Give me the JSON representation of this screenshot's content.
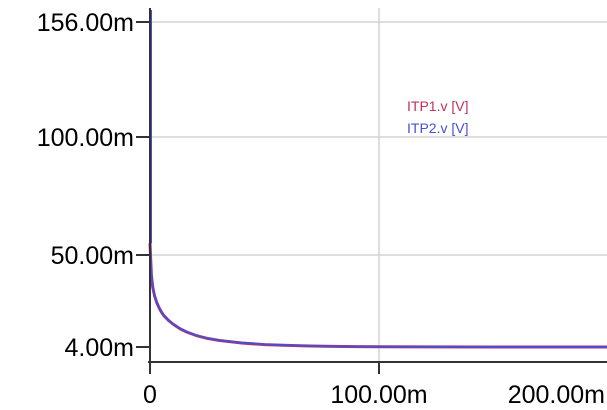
{
  "chart_data": {
    "type": "line",
    "xlabel": "",
    "ylabel": "",
    "xlim": [
      0,
      200
    ],
    "ylim": [
      4,
      156
    ],
    "x_unit": "m",
    "y_unit": "m",
    "grid": true,
    "legend_placement": "top-right",
    "x_ticks": [
      {
        "value": 0,
        "label": "0"
      },
      {
        "value": 100,
        "label": "100.00m"
      },
      {
        "value": 200,
        "label": "200.00m"
      }
    ],
    "y_ticks": [
      {
        "value": 4,
        "label": "4.00m"
      },
      {
        "value": 50,
        "label": "50.00m"
      },
      {
        "value": 100,
        "label": "100.00m"
      },
      {
        "value": 156,
        "label": "156.00m"
      }
    ],
    "series": [
      {
        "name": "ITP1.v [V]",
        "color": "#c0305a",
        "x": [
          0,
          0.6,
          1.2,
          2,
          3,
          4,
          5,
          6,
          8,
          10,
          13,
          16,
          20,
          25,
          30,
          40,
          50,
          60,
          70,
          80,
          90,
          100,
          120,
          150,
          180,
          200
        ],
        "y": [
          55,
          40,
          34,
          29.5,
          26,
          23.5,
          21.5,
          19.8,
          17.4,
          15.5,
          13.2,
          11.5,
          9.8,
          8.3,
          7.3,
          6.0,
          5.2,
          4.8,
          4.5,
          4.3,
          4.2,
          4.1,
          4.05,
          4.0,
          4.0,
          4.0
        ]
      },
      {
        "name": "ITP2.v [V]",
        "color": "#4a4ed0",
        "x": [
          0,
          0.6,
          1.2,
          2,
          3,
          4,
          5,
          6,
          8,
          10,
          13,
          16,
          20,
          25,
          30,
          40,
          50,
          60,
          70,
          80,
          90,
          100,
          120,
          150,
          180,
          200
        ],
        "y": [
          56,
          40.5,
          34.3,
          29.8,
          26.2,
          23.7,
          21.6,
          19.9,
          17.5,
          15.6,
          13.3,
          11.6,
          9.9,
          8.4,
          7.4,
          6.1,
          5.3,
          4.85,
          4.55,
          4.35,
          4.25,
          4.15,
          4.08,
          4.02,
          4.0,
          4.0
        ]
      }
    ]
  }
}
